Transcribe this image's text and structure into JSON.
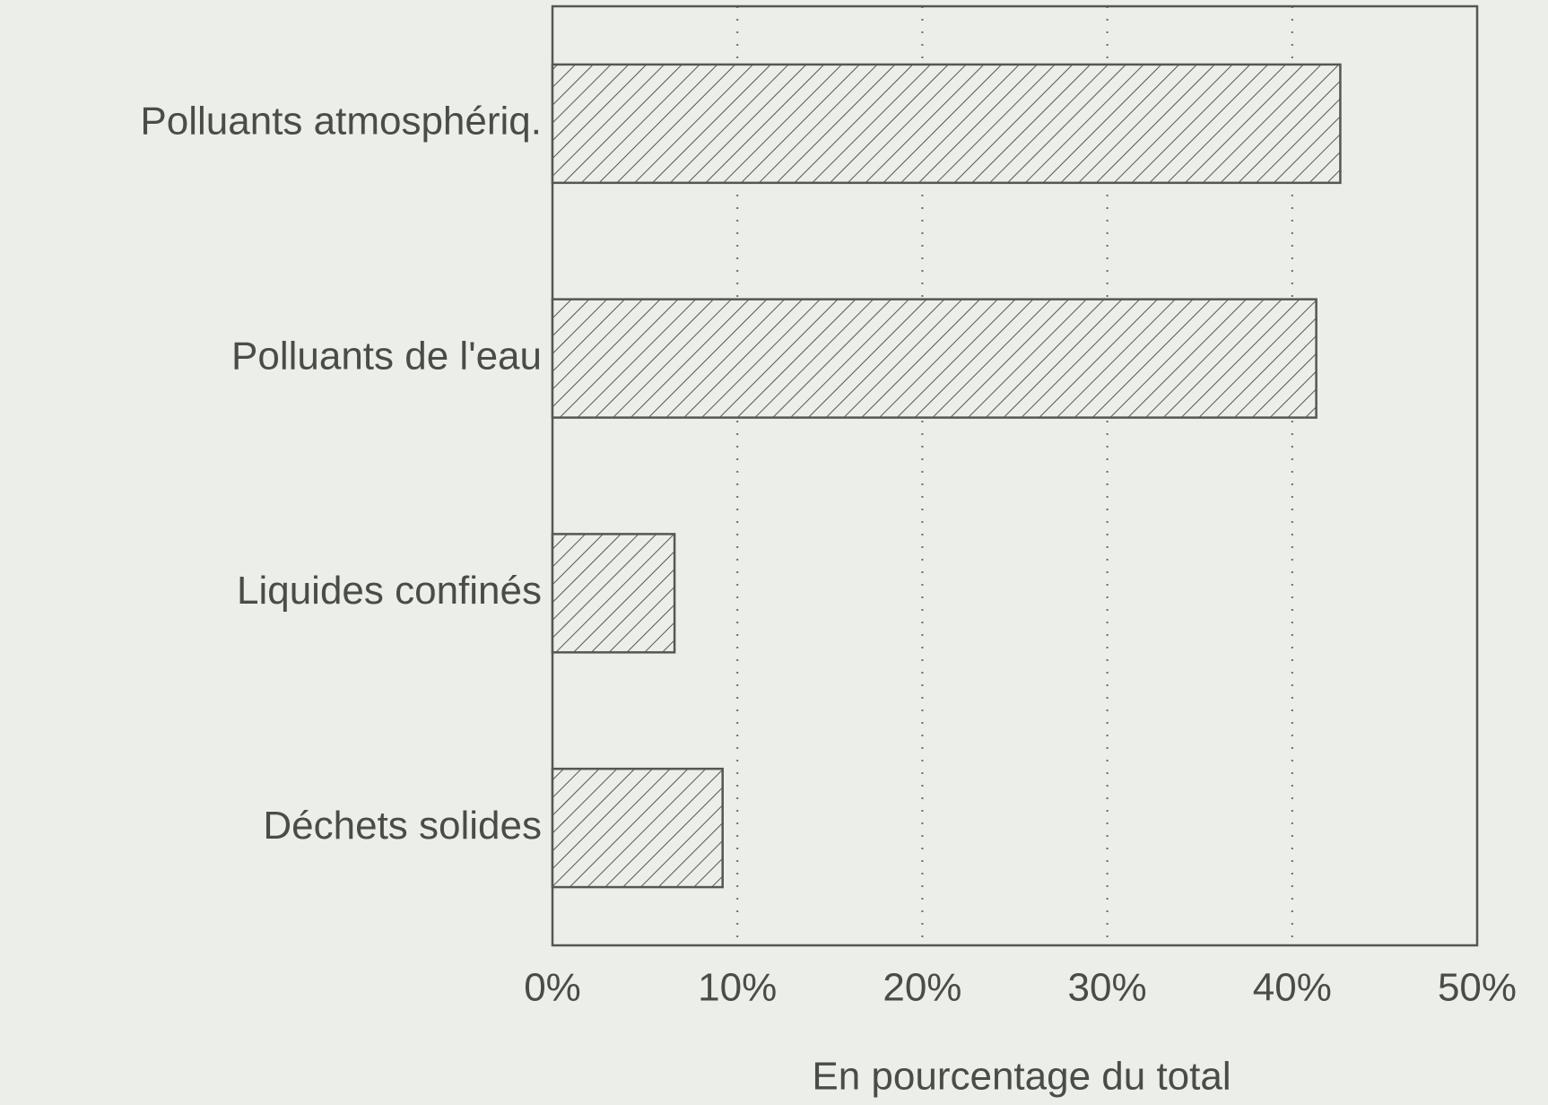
{
  "chart_data": {
    "type": "bar",
    "orientation": "horizontal",
    "x_label": "En pourcentage du total",
    "categories": [
      "Polluants atmosphériq.",
      "Polluants de l'eau",
      "Liquides confinés",
      "Déchets solides"
    ],
    "values": [
      42.6,
      41.3,
      6.6,
      9.2
    ],
    "color": "#55584f",
    "xlim": [
      0,
      50
    ],
    "xticks": [
      {
        "value": 0,
        "label": "0%"
      },
      {
        "value": 10,
        "label": "10%"
      },
      {
        "value": 20,
        "label": "20%"
      },
      {
        "value": 30,
        "label": "30%"
      },
      {
        "value": 40,
        "label": "40%"
      },
      {
        "value": 50,
        "label": "50%"
      }
    ],
    "grid": true
  }
}
